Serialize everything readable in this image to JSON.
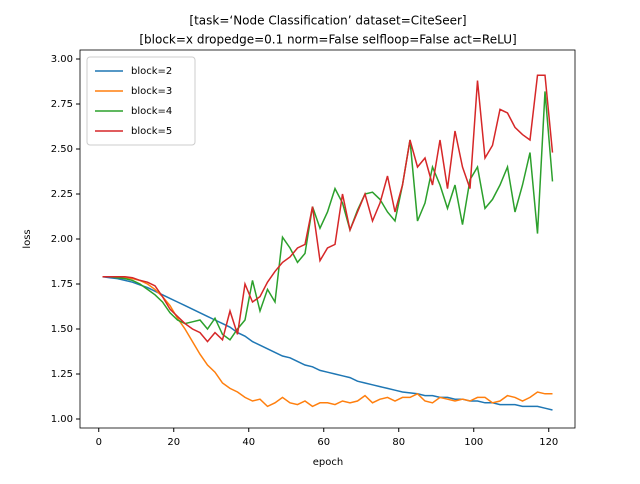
{
  "chart_data": {
    "type": "line",
    "title": [
      "[task=‘Node Classification’ dataset=CiteSeer]",
      "[block=x dropedge=0.1 norm=False selfloop=False act=ReLU]"
    ],
    "xlabel": "epoch",
    "ylabel": "loss",
    "x": [
      1,
      3,
      5,
      7,
      9,
      11,
      13,
      15,
      17,
      19,
      21,
      23,
      25,
      27,
      29,
      31,
      33,
      35,
      37,
      39,
      41,
      43,
      45,
      47,
      49,
      51,
      53,
      55,
      57,
      59,
      61,
      63,
      65,
      67,
      69,
      71,
      73,
      75,
      77,
      79,
      81,
      83,
      85,
      87,
      89,
      91,
      93,
      95,
      97,
      99,
      101,
      103,
      105,
      107,
      109,
      111,
      113,
      115,
      117,
      119,
      121
    ],
    "series": [
      {
        "name": "block=2",
        "color": "#1f77b4",
        "values": [
          1.79,
          1.785,
          1.78,
          1.77,
          1.76,
          1.745,
          1.73,
          1.71,
          1.69,
          1.67,
          1.65,
          1.63,
          1.61,
          1.59,
          1.57,
          1.55,
          1.53,
          1.51,
          1.48,
          1.46,
          1.43,
          1.41,
          1.39,
          1.37,
          1.35,
          1.34,
          1.32,
          1.3,
          1.29,
          1.27,
          1.26,
          1.25,
          1.24,
          1.23,
          1.21,
          1.2,
          1.19,
          1.18,
          1.17,
          1.16,
          1.15,
          1.145,
          1.14,
          1.13,
          1.13,
          1.12,
          1.12,
          1.11,
          1.11,
          1.1,
          1.1,
          1.09,
          1.09,
          1.08,
          1.08,
          1.08,
          1.07,
          1.07,
          1.07,
          1.06,
          1.05
        ]
      },
      {
        "name": "block=3",
        "color": "#ff7f0e",
        "values": [
          1.79,
          1.79,
          1.79,
          1.785,
          1.78,
          1.77,
          1.75,
          1.72,
          1.68,
          1.63,
          1.56,
          1.5,
          1.43,
          1.36,
          1.3,
          1.26,
          1.2,
          1.17,
          1.15,
          1.12,
          1.1,
          1.11,
          1.07,
          1.09,
          1.12,
          1.09,
          1.08,
          1.1,
          1.07,
          1.09,
          1.09,
          1.08,
          1.1,
          1.09,
          1.1,
          1.13,
          1.09,
          1.11,
          1.12,
          1.1,
          1.12,
          1.12,
          1.14,
          1.1,
          1.09,
          1.12,
          1.11,
          1.1,
          1.11,
          1.1,
          1.12,
          1.12,
          1.09,
          1.1,
          1.13,
          1.12,
          1.1,
          1.12,
          1.15,
          1.14,
          1.14
        ]
      },
      {
        "name": "block=4",
        "color": "#2ca02c",
        "values": [
          1.79,
          1.79,
          1.785,
          1.78,
          1.77,
          1.75,
          1.72,
          1.69,
          1.65,
          1.59,
          1.55,
          1.53,
          1.54,
          1.55,
          1.5,
          1.56,
          1.47,
          1.44,
          1.5,
          1.55,
          1.77,
          1.6,
          1.72,
          1.65,
          2.01,
          1.95,
          1.87,
          1.92,
          2.18,
          2.06,
          2.15,
          2.28,
          2.2,
          2.05,
          2.16,
          2.25,
          2.26,
          2.22,
          2.15,
          2.1,
          2.3,
          2.55,
          2.1,
          2.2,
          2.4,
          2.3,
          2.17,
          2.3,
          2.08,
          2.33,
          2.4,
          2.17,
          2.22,
          2.3,
          2.4,
          2.15,
          2.3,
          2.48,
          2.03,
          2.82,
          2.32
        ]
      },
      {
        "name": "block=5",
        "color": "#d62728",
        "values": [
          1.79,
          1.79,
          1.79,
          1.79,
          1.785,
          1.77,
          1.76,
          1.74,
          1.68,
          1.61,
          1.57,
          1.53,
          1.5,
          1.48,
          1.43,
          1.48,
          1.44,
          1.6,
          1.47,
          1.75,
          1.65,
          1.68,
          1.76,
          1.82,
          1.87,
          1.9,
          1.95,
          1.97,
          2.18,
          1.88,
          1.95,
          1.97,
          2.25,
          2.05,
          2.15,
          2.25,
          2.1,
          2.2,
          2.35,
          2.15,
          2.3,
          2.55,
          2.4,
          2.45,
          2.3,
          2.55,
          2.28,
          2.6,
          2.4,
          2.28,
          2.88,
          2.45,
          2.52,
          2.72,
          2.7,
          2.62,
          2.58,
          2.55,
          2.91,
          2.91,
          2.48
        ]
      }
    ],
    "xlim": [
      -5,
      127
    ],
    "ylim": [
      0.95,
      3.05
    ],
    "xticks": [
      0,
      20,
      40,
      60,
      80,
      100,
      120
    ],
    "yticks": [
      {
        "value": 1,
        "label": "1.00"
      },
      {
        "value": 1.25,
        "label": "1.25"
      },
      {
        "value": 1.5,
        "label": "1.50"
      },
      {
        "value": 1.75,
        "label": "1.75"
      },
      {
        "value": 2,
        "label": "2.00"
      },
      {
        "value": 2.25,
        "label": "2.25"
      },
      {
        "value": 2.5,
        "label": "2.50"
      },
      {
        "value": 2.75,
        "label": "2.75"
      },
      {
        "value": 3,
        "label": "3.00"
      }
    ],
    "legend": "upper left"
  }
}
